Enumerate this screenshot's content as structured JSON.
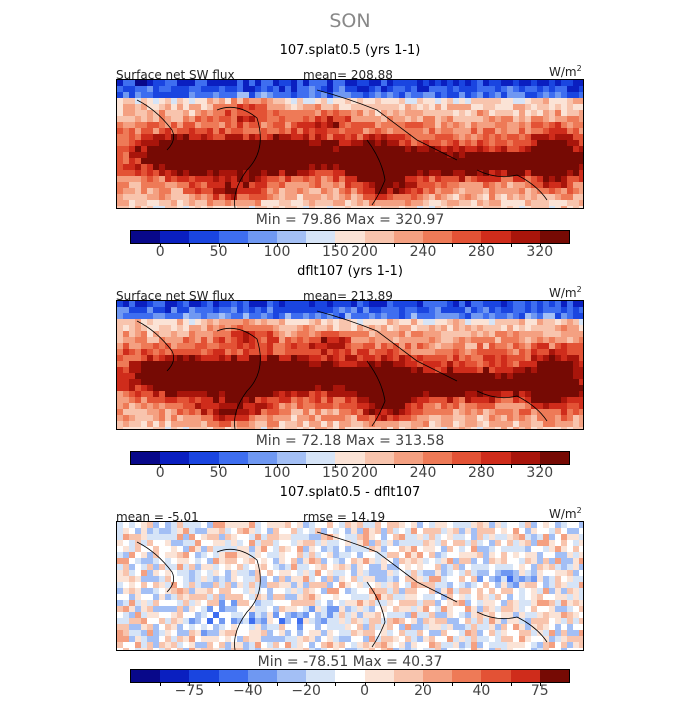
{
  "season": "SON",
  "units": {
    "base": "W/m",
    "exp": "2"
  },
  "colorbars": {
    "abs": {
      "colors": [
        "#08088a",
        "#0a1fc0",
        "#1a45e0",
        "#3e6ef0",
        "#6f98f2",
        "#a3bff5",
        "#d6e4f7",
        "#fbe3d6",
        "#f8c4ad",
        "#f4a081",
        "#ee7a57",
        "#e35235",
        "#cf2c1b",
        "#a8150b",
        "#760a04"
      ],
      "ticks": [
        {
          "label": "0",
          "pos": 1
        },
        {
          "label": "50",
          "pos": 3
        },
        {
          "label": "100",
          "pos": 5
        },
        {
          "label": "150",
          "pos": 7
        },
        {
          "label": "200",
          "pos": 8
        },
        {
          "label": "240",
          "pos": 10
        },
        {
          "label": "280",
          "pos": 12
        },
        {
          "label": "320",
          "pos": 14
        }
      ]
    },
    "diff": {
      "colors": [
        "#08088a",
        "#0a1fc0",
        "#1a45e0",
        "#3e6ef0",
        "#6f98f2",
        "#a3bff5",
        "#d6e4f7",
        "#ffffff",
        "#fbe3d6",
        "#f8c4ad",
        "#f4a081",
        "#ee7a57",
        "#e35235",
        "#cf2c1b",
        "#760a04"
      ],
      "ticks": [
        {
          "label": "−75",
          "pos": 2
        },
        {
          "label": "−40",
          "pos": 4
        },
        {
          "label": "−20",
          "pos": 6
        },
        {
          "label": "0",
          "pos": 8
        },
        {
          "label": "20",
          "pos": 10
        },
        {
          "label": "40",
          "pos": 12
        },
        {
          "label": "75",
          "pos": 14
        }
      ]
    }
  },
  "chart_data": [
    {
      "type": "heatmap",
      "title": "107.splat0.5 (yrs 1-1)",
      "variable": "Surface net SW flux",
      "mean_label": "mean= 208.88",
      "mean": 208.88,
      "min": 79.86,
      "max": 320.97,
      "minmax_label": "Min =  79.86  Max = 320.97",
      "units": "W/m2",
      "colorbar_levels": [
        0,
        50,
        100,
        150,
        200,
        240,
        280,
        320
      ]
    },
    {
      "type": "heatmap",
      "title": "dflt107 (yrs 1-1)",
      "variable": "Surface net SW flux",
      "mean_label": "mean= 213.89",
      "mean": 213.89,
      "min": 72.18,
      "max": 313.58,
      "minmax_label": "Min =  72.18  Max = 313.58",
      "units": "W/m2",
      "colorbar_levels": [
        0,
        50,
        100,
        150,
        200,
        240,
        280,
        320
      ]
    },
    {
      "type": "heatmap",
      "title": "107.splat0.5 - dflt107",
      "mean_label": "mean =  -5.01",
      "mean": -5.01,
      "rmse_label": "rmse =  14.19",
      "rmse": 14.19,
      "min": -78.51,
      "max": 40.37,
      "minmax_label": "Min = -78.51  Max =  40.37",
      "units": "W/m2",
      "colorbar_levels": [
        -75,
        -40,
        -20,
        0,
        20,
        40,
        75
      ]
    }
  ]
}
